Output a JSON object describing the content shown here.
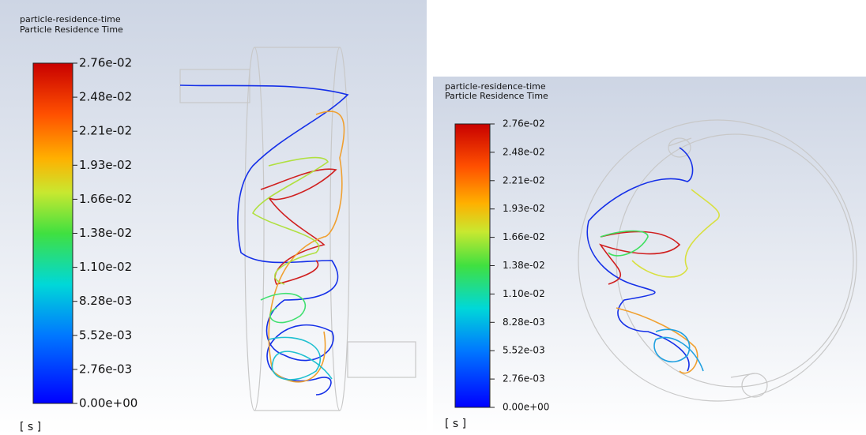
{
  "panels": [
    {
      "title": "particle-residence-time",
      "subtitle": "Particle Residence Time",
      "colorbar": {
        "labels": [
          "2.76e-02",
          "2.48e-02",
          "2.21e-02",
          "1.93e-02",
          "1.66e-02",
          "1.38e-02",
          "1.10e-02",
          "8.28e-03",
          "5.52e-03",
          "2.76e-03",
          "0.00e+00"
        ]
      },
      "unit": "[ s ]"
    },
    {
      "title": "particle-residence-time",
      "subtitle": "Particle Residence Time",
      "colorbar": {
        "labels": [
          "2.76e-02",
          "2.48e-02",
          "2.21e-02",
          "1.93e-02",
          "1.66e-02",
          "1.38e-02",
          "1.10e-02",
          "8.28e-03",
          "5.52e-03",
          "2.76e-03",
          "0.00e+00"
        ]
      },
      "unit": "[ s ]"
    }
  ]
}
